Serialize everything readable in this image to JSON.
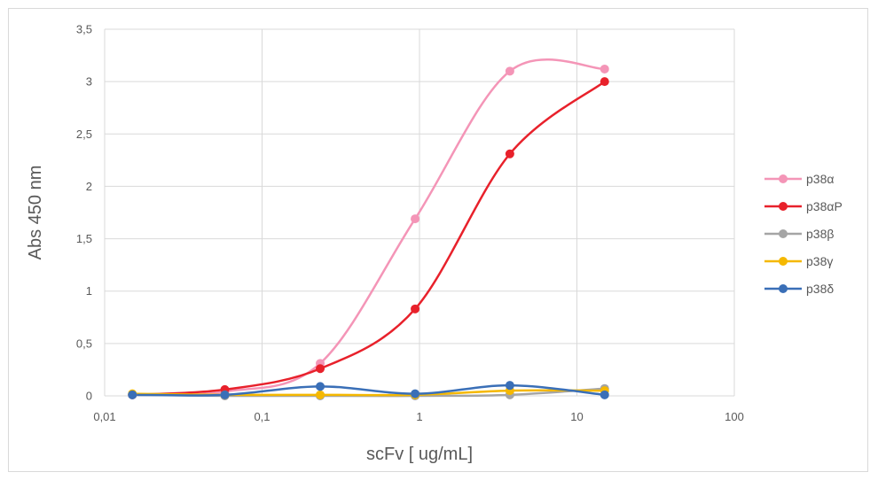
{
  "chart_data": {
    "type": "scatter",
    "xlabel": "scFv [ ug/mL]",
    "ylabel": "Abs 450 nm",
    "x_scale": "log",
    "xlim": [
      0.01,
      100
    ],
    "ylim": [
      0,
      3.5
    ],
    "x_ticks": [
      "0,01",
      "0,1",
      "1",
      "10",
      "100"
    ],
    "y_ticks": [
      "0",
      "0,5",
      "1",
      "1,5",
      "2",
      "2,5",
      "3",
      "3,5"
    ],
    "grid": true,
    "legend_position": "right",
    "series": [
      {
        "name": "p38α",
        "color": "#f495b7",
        "x": [
          0.015,
          0.058,
          0.234,
          0.938,
          3.75,
          15
        ],
        "y": [
          0.01,
          0.04,
          0.31,
          1.69,
          3.1,
          3.12
        ]
      },
      {
        "name": "p38αP",
        "color": "#e8212b",
        "x": [
          0.015,
          0.058,
          0.234,
          0.938,
          3.75,
          15
        ],
        "y": [
          0.01,
          0.06,
          0.26,
          0.83,
          2.31,
          3.0
        ]
      },
      {
        "name": "p38β",
        "color": "#a5a5a5",
        "x": [
          0.015,
          0.058,
          0.234,
          0.938,
          3.75,
          15
        ],
        "y": [
          0.01,
          0.0,
          0.0,
          0.0,
          0.01,
          0.07
        ]
      },
      {
        "name": "p38γ",
        "color": "#f5b800",
        "x": [
          0.015,
          0.058,
          0.234,
          0.938,
          3.75,
          15
        ],
        "y": [
          0.02,
          0.01,
          0.01,
          0.01,
          0.05,
          0.05
        ]
      },
      {
        "name": "p38δ",
        "color": "#3a6fb7",
        "x": [
          0.015,
          0.058,
          0.234,
          0.938,
          3.75,
          15
        ],
        "y": [
          0.01,
          0.01,
          0.09,
          0.02,
          0.1,
          0.01
        ]
      }
    ]
  }
}
